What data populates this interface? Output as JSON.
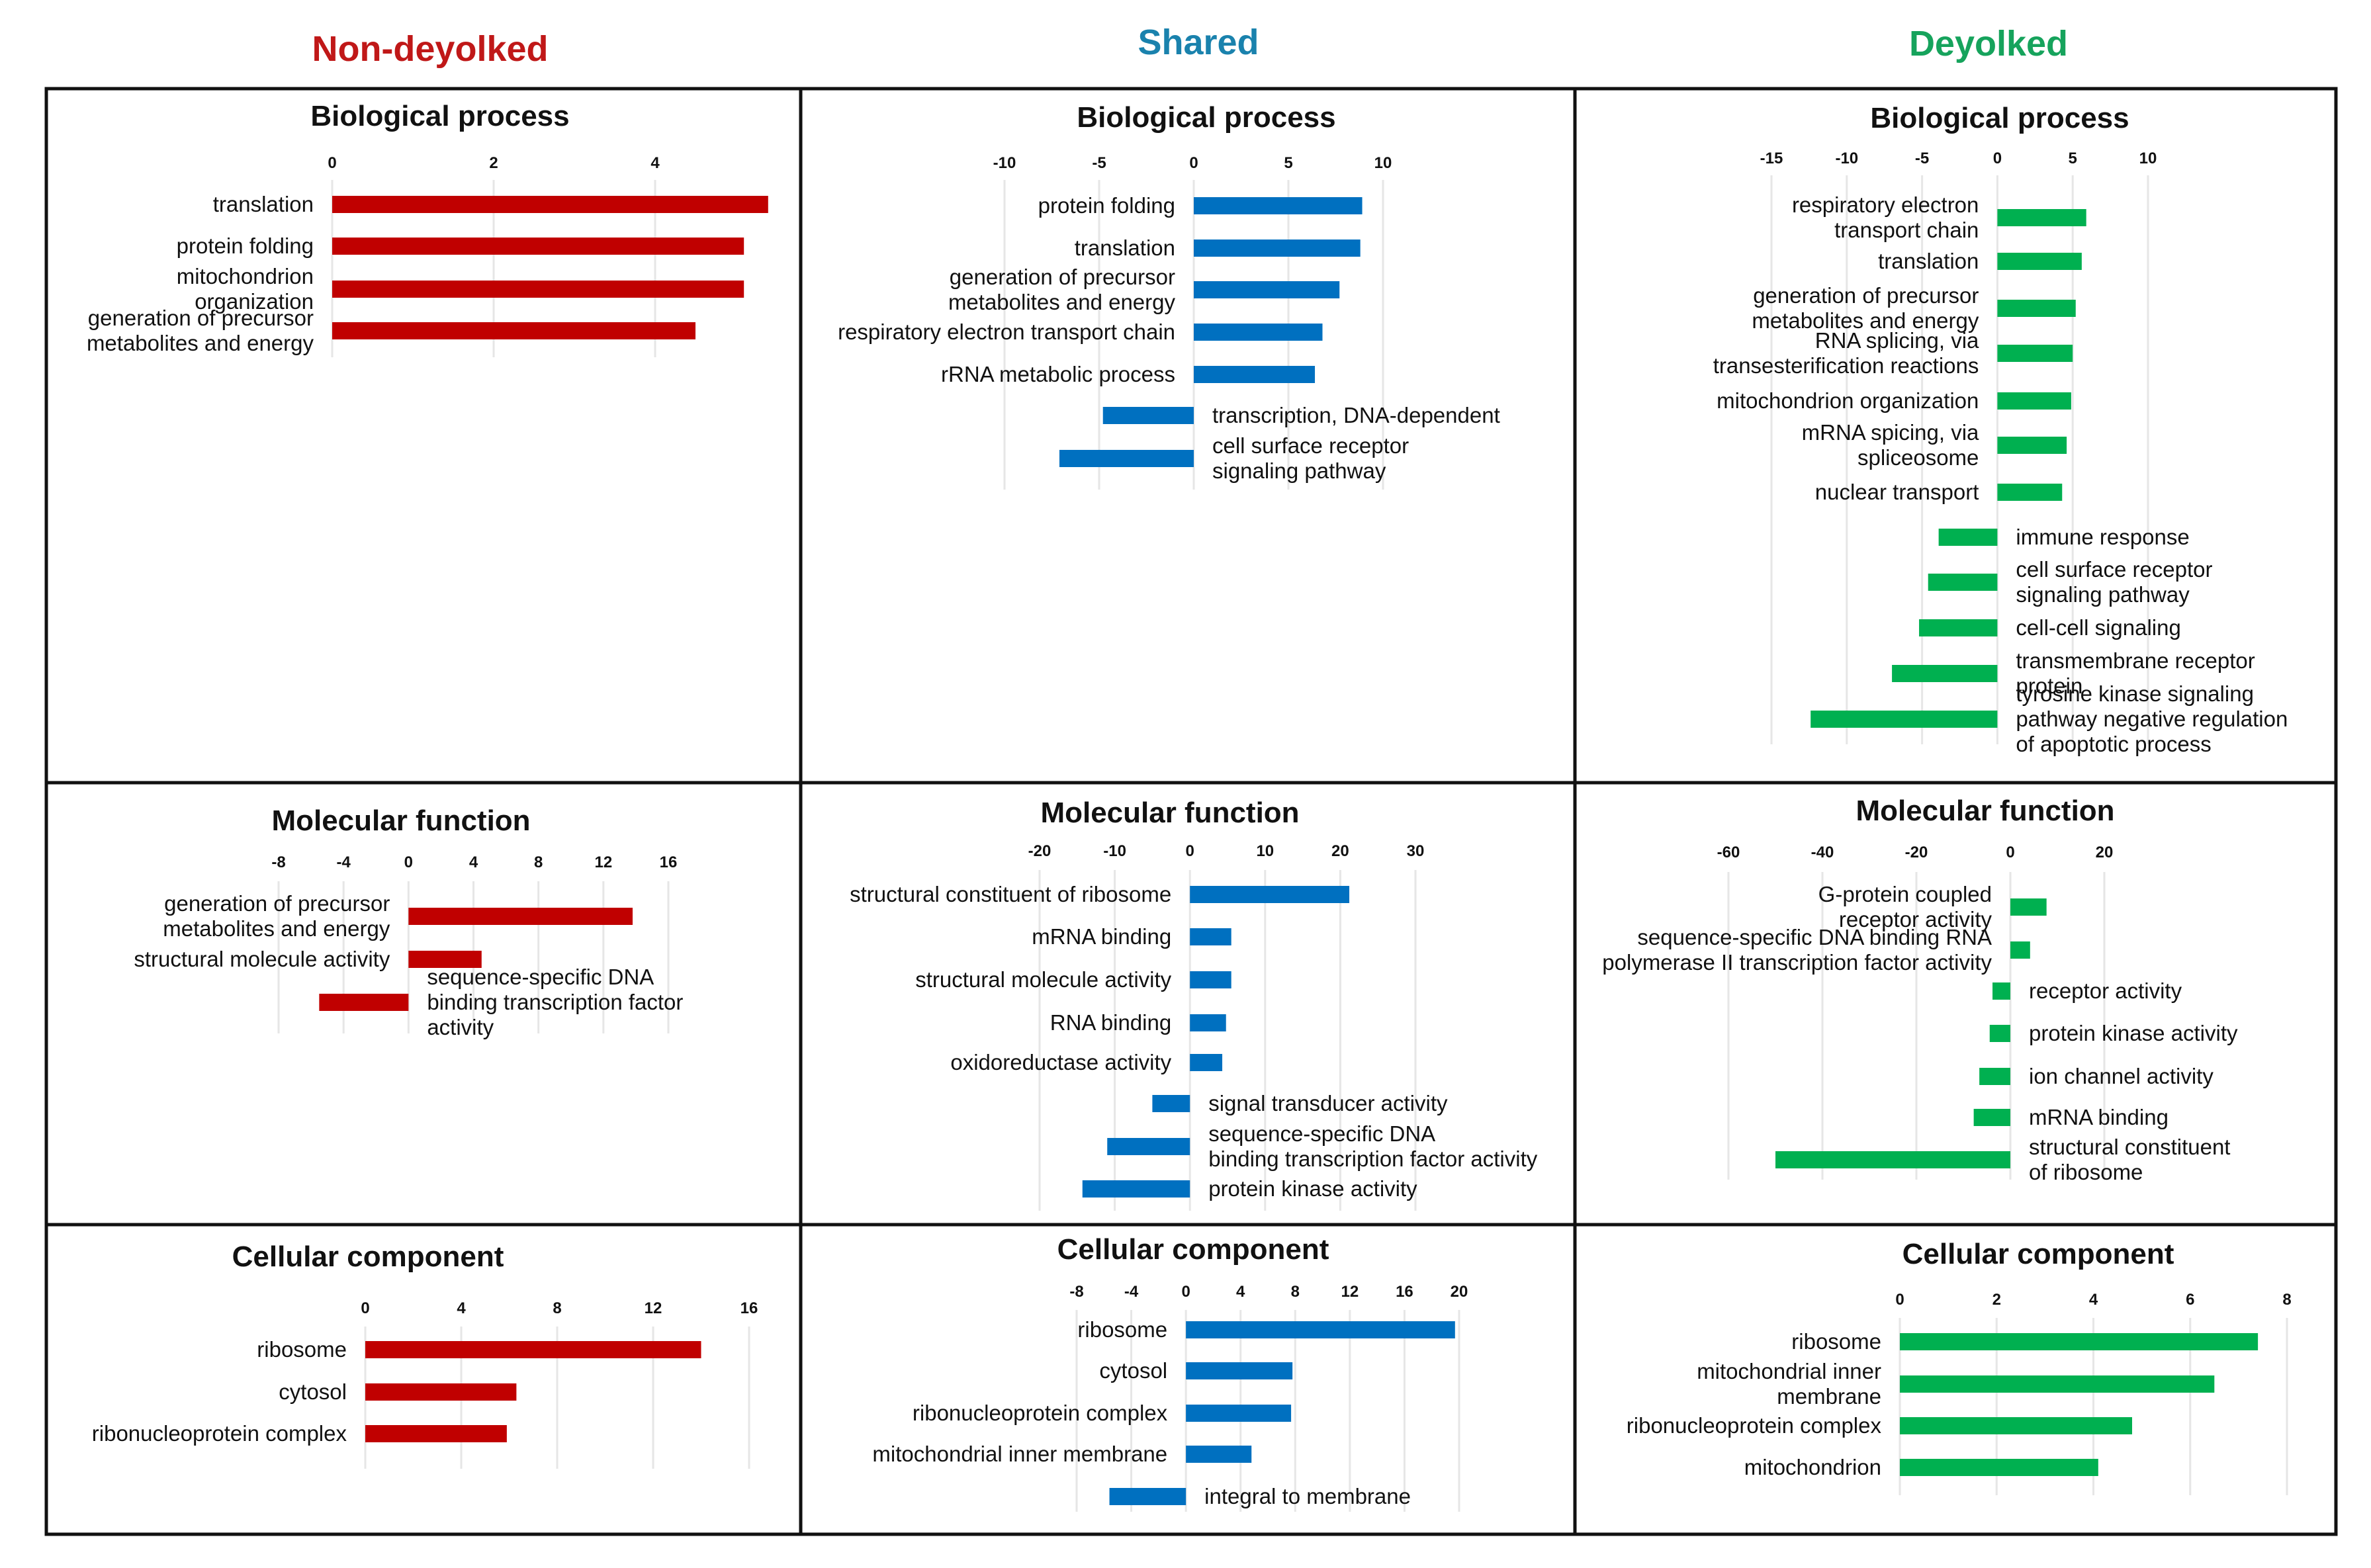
{
  "column_titles": {
    "nondeyolked": "Non-deyolked",
    "shared": "Shared",
    "deyolked": "Deyolked"
  },
  "colors": {
    "nondeyolked": "#c00000",
    "shared": "#0070c0",
    "deyolked": "#00b050",
    "nondeyolked_title": "#c01818",
    "shared_title": "#1a82ad",
    "deyolked_title": "#16a35c"
  },
  "chart_data": [
    {
      "id": "nd-bp",
      "type": "bar",
      "orientation": "horizontal",
      "group": "Non-deyolked",
      "title": "Biological process",
      "xlim": [
        0,
        5
      ],
      "xticks": [
        0,
        2,
        4
      ],
      "categories": [
        [
          "translation"
        ],
        [
          "protein folding"
        ],
        [
          "mitochondrion",
          "organization"
        ],
        [
          "generation of precursor",
          "metabolites and energy"
        ]
      ],
      "values": [
        5.4,
        5.1,
        5.1,
        4.5
      ]
    },
    {
      "id": "nd-mf",
      "type": "bar",
      "orientation": "horizontal",
      "group": "Non-deyolked",
      "title": "Molecular function",
      "xlim": [
        -8,
        16
      ],
      "xticks": [
        -8,
        -4,
        0,
        4,
        8,
        12,
        16
      ],
      "categories": [
        [
          "generation of precursor",
          "metabolites and energy"
        ],
        [
          "structural molecule activity"
        ],
        [
          "sequence-specific DNA",
          "binding transcription factor",
          "activity"
        ]
      ],
      "values": [
        13.8,
        4.5,
        -5.5
      ]
    },
    {
      "id": "nd-cc",
      "type": "bar",
      "orientation": "horizontal",
      "group": "Non-deyolked",
      "title": "Cellular component",
      "xlim": [
        0,
        16
      ],
      "xticks": [
        0,
        4,
        8,
        12,
        16
      ],
      "categories": [
        [
          "ribosome"
        ],
        [
          "cytosol"
        ],
        [
          "ribonucleoprotein complex"
        ]
      ],
      "values": [
        14,
        6.3,
        5.9
      ]
    },
    {
      "id": "sh-bp",
      "type": "bar",
      "orientation": "horizontal",
      "group": "Shared",
      "title": "Biological process",
      "xlim": [
        -10,
        10
      ],
      "xticks": [
        -10,
        -5,
        0,
        5,
        10
      ],
      "categories": [
        [
          "protein folding"
        ],
        [
          "translation"
        ],
        [
          "generation of precursor",
          "metabolites and energy"
        ],
        [
          "respiratory electron transport chain"
        ],
        [
          "rRNA metabolic process"
        ],
        [
          "transcription, DNA-dependent"
        ],
        [
          "cell surface receptor",
          "signaling pathway"
        ]
      ],
      "values": [
        8.9,
        8.8,
        7.7,
        6.8,
        6.4,
        -4.8,
        -7.1
      ]
    },
    {
      "id": "sh-mf",
      "type": "bar",
      "orientation": "horizontal",
      "group": "Shared",
      "title": "Molecular function",
      "xlim": [
        -20,
        30
      ],
      "xticks": [
        -20,
        -10,
        0,
        10,
        20,
        30
      ],
      "categories": [
        [
          "structural constituent of ribosome"
        ],
        [
          "mRNA binding"
        ],
        [
          "structural molecule activity"
        ],
        [
          "RNA binding"
        ],
        [
          "oxidoreductase activity"
        ],
        [
          "signal transducer activity"
        ],
        [
          "sequence-specific DNA",
          "binding transcription factor activity"
        ],
        [
          "protein kinase activity"
        ]
      ],
      "values": [
        21.2,
        5.5,
        5.5,
        4.8,
        4.3,
        -5,
        -11,
        -14.3
      ]
    },
    {
      "id": "sh-cc",
      "type": "bar",
      "orientation": "horizontal",
      "group": "Shared",
      "title": "Cellular component",
      "xlim": [
        -8,
        20
      ],
      "xticks": [
        -8,
        -4,
        0,
        4,
        8,
        12,
        16,
        20
      ],
      "categories": [
        [
          "ribosome"
        ],
        [
          "cytosol"
        ],
        [
          "ribonucleoprotein complex"
        ],
        [
          "mitochondrial inner membrane"
        ],
        [
          "integral to membrane"
        ]
      ],
      "values": [
        19.7,
        7.8,
        7.7,
        4.8,
        -5.6
      ]
    },
    {
      "id": "dy-bp",
      "type": "bar",
      "orientation": "horizontal",
      "group": "Deyolked",
      "title": "Biological process",
      "xlim": [
        -15,
        10
      ],
      "xticks": [
        -15,
        -10,
        -5,
        0,
        5,
        10
      ],
      "categories": [
        [
          "respiratory electron",
          "transport chain"
        ],
        [
          "translation"
        ],
        [
          "generation of precursor",
          "metabolites and energy"
        ],
        [
          "RNA splicing, via",
          "transesterification reactions"
        ],
        [
          "mitochondrion organization"
        ],
        [
          "mRNA spicing, via",
          "spliceosome"
        ],
        [
          "nuclear transport"
        ],
        [
          "immune response"
        ],
        [
          "cell surface receptor",
          "signaling pathway"
        ],
        [
          "cell-cell signaling"
        ],
        [
          "transmembrane receptor",
          "protein"
        ],
        [
          "tyrosine kinase signaling",
          "pathway negative regulation",
          "of apoptotic process"
        ]
      ],
      "values": [
        5.9,
        5.6,
        5.2,
        5.0,
        4.9,
        4.6,
        4.3,
        -3.9,
        -4.6,
        -5.2,
        -7.0,
        -12.4
      ]
    },
    {
      "id": "dy-mf",
      "type": "bar",
      "orientation": "horizontal",
      "group": "Deyolked",
      "title": "Molecular function",
      "xlim": [
        -60,
        20
      ],
      "xticks": [
        -60,
        -40,
        -20,
        0,
        20
      ],
      "categories": [
        [
          "G-protein coupled",
          "receptor activity"
        ],
        [
          "sequence-specific DNA binding RNA",
          "polymerase II transcription factor activity"
        ],
        [
          "receptor activity"
        ],
        [
          "protein kinase activity"
        ],
        [
          "ion channel activity"
        ],
        [
          "mRNA binding"
        ],
        [
          "structural constituent",
          "of ribosome"
        ]
      ],
      "values": [
        7.7,
        4.2,
        -3.8,
        -4.4,
        -6.6,
        -7.8,
        -50
      ]
    },
    {
      "id": "dy-cc",
      "type": "bar",
      "orientation": "horizontal",
      "group": "Deyolked",
      "title": "Cellular component",
      "xlim": [
        0,
        8
      ],
      "xticks": [
        0,
        2,
        4,
        6,
        8
      ],
      "categories": [
        [
          "ribosome"
        ],
        [
          "mitochondrial inner",
          "membrane"
        ],
        [
          "ribonucleoprotein complex"
        ],
        [
          "mitochondrion"
        ]
      ],
      "values": [
        7.4,
        6.5,
        4.8,
        4.1
      ]
    }
  ]
}
